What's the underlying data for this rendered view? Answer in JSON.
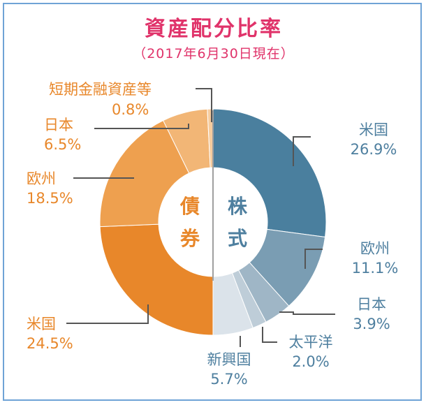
{
  "chart_data": {
    "type": "pie",
    "title": "資産配分比率",
    "subtitle": "（2017年6月30日現在）",
    "center_labels": {
      "stock": "株式",
      "bond": "債券"
    },
    "slices": [
      {
        "group": "株式",
        "name": "米国",
        "value": 26.9,
        "label": "26.9%",
        "color": "#4a7f9e"
      },
      {
        "group": "株式",
        "name": "欧州",
        "value": 11.1,
        "label": "11.1%",
        "color": "#7a9db3"
      },
      {
        "group": "株式",
        "name": "日本",
        "value": 3.9,
        "label": "3.9%",
        "color": "#9fb6c6"
      },
      {
        "group": "株式",
        "name": "太平洋",
        "value": 2.0,
        "label": "2.0%",
        "color": "#becdd8"
      },
      {
        "group": "株式",
        "name": "新興国",
        "value": 5.7,
        "label": "5.7%",
        "color": "#dbe3ea"
      },
      {
        "group": "債券",
        "name": "米国",
        "value": 24.5,
        "label": "24.5%",
        "color": "#e8872a"
      },
      {
        "group": "債券",
        "name": "欧州",
        "value": 18.5,
        "label": "18.5%",
        "color": "#eea04f"
      },
      {
        "group": "債券",
        "name": "日本",
        "value": 6.5,
        "label": "6.5%",
        "color": "#f2b676"
      },
      {
        "group": "債券",
        "name": "短期金融資産等",
        "value": 0.8,
        "label": "0.8%",
        "color": "#f6cc9e"
      }
    ],
    "colors": {
      "stock_text": "#4e7f9f",
      "bond_text": "#e8872a",
      "title": "#e0336a"
    }
  }
}
